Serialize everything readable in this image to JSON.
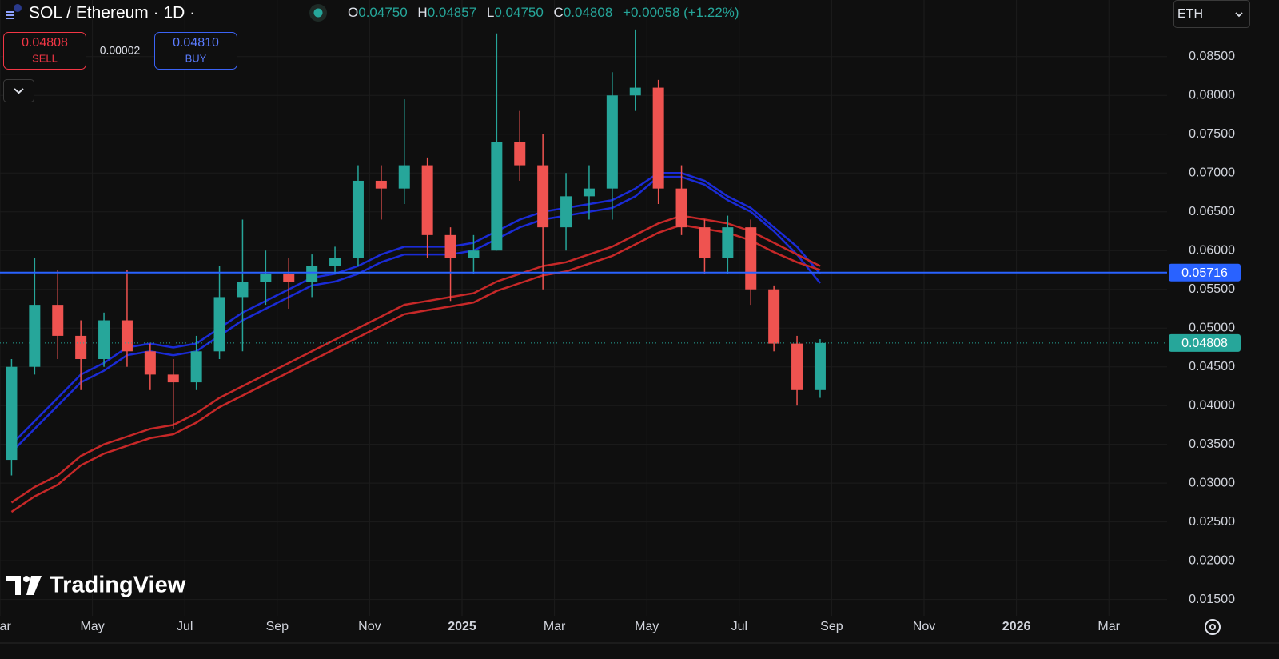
{
  "header": {
    "symbol": "SOL / Ethereum · 1D ·",
    "ohlc": [
      {
        "key": "O",
        "value": "0.04750"
      },
      {
        "key": "H",
        "value": "0.04857"
      },
      {
        "key": "L",
        "value": "0.04750"
      },
      {
        "key": "C",
        "value": "0.04808"
      }
    ],
    "change": "+0.00058 (+1.22%)",
    "currency": "ETH"
  },
  "trade_panel": {
    "sell_price": "0.04808",
    "sell_label": "SELL",
    "spread": "0.00002",
    "buy_price": "0.04810",
    "buy_label": "BUY"
  },
  "watermark": "TradingView",
  "chart_data": {
    "type": "candlestick",
    "categories": [
      "Mar",
      null,
      null,
      null,
      "May",
      null,
      null,
      null,
      "Jul",
      null,
      null,
      null,
      "Sep",
      null,
      null,
      null,
      "Nov",
      null,
      null,
      null,
      "2025",
      null,
      null,
      null,
      "Mar",
      null,
      null,
      null,
      "May",
      null,
      null,
      null,
      "Jul",
      null,
      null,
      null,
      "Sep",
      null,
      null,
      null,
      "Nov",
      null,
      null,
      null,
      "2026",
      null,
      null,
      null,
      "Mar",
      null
    ],
    "open": [
      0.033,
      0.045,
      0.053,
      0.049,
      0.046,
      0.051,
      0.047,
      0.044,
      0.043,
      0.047,
      0.054,
      0.056,
      0.057,
      0.056,
      0.058,
      0.059,
      0.069,
      0.068,
      0.071,
      0.062,
      0.059,
      0.06,
      0.074,
      0.071,
      0.063,
      0.067,
      0.068,
      0.08,
      0.081,
      0.068,
      0.063,
      0.059,
      0.063,
      0.055,
      0.048,
      0.042,
      null,
      null,
      null,
      null,
      null,
      null,
      null,
      null,
      null,
      null,
      null,
      null,
      null,
      null
    ],
    "high": [
      0.046,
      0.059,
      0.0575,
      0.051,
      0.052,
      0.0575,
      0.048,
      0.046,
      0.049,
      0.058,
      0.064,
      0.06,
      0.059,
      0.0595,
      0.0605,
      0.071,
      0.071,
      0.0795,
      0.072,
      0.063,
      0.062,
      0.088,
      0.078,
      0.075,
      0.07,
      0.071,
      0.083,
      0.0885,
      0.082,
      0.071,
      0.064,
      0.0645,
      0.064,
      0.0555,
      0.049,
      0.04857,
      null,
      null,
      null,
      null,
      null,
      null,
      null,
      null,
      null,
      null,
      null,
      null,
      null,
      null
    ],
    "low": [
      0.031,
      0.044,
      0.046,
      0.042,
      0.045,
      0.045,
      0.042,
      0.037,
      0.042,
      0.046,
      0.047,
      0.053,
      0.0525,
      0.054,
      0.057,
      0.058,
      0.064,
      0.066,
      0.059,
      0.0535,
      0.057,
      0.06,
      0.069,
      0.055,
      0.06,
      0.064,
      0.064,
      0.078,
      0.066,
      0.062,
      0.057,
      0.057,
      0.053,
      0.047,
      0.04,
      0.041,
      null,
      null,
      null,
      null,
      null,
      null,
      null,
      null,
      null,
      null,
      null,
      null,
      null,
      null
    ],
    "close": [
      0.045,
      0.053,
      0.049,
      0.046,
      0.051,
      0.047,
      0.044,
      0.043,
      0.047,
      0.054,
      0.056,
      0.057,
      0.056,
      0.058,
      0.059,
      0.069,
      0.068,
      0.071,
      0.062,
      0.059,
      0.06,
      0.074,
      0.071,
      0.063,
      0.067,
      0.068,
      0.08,
      0.081,
      0.068,
      0.063,
      0.059,
      0.063,
      0.055,
      0.048,
      0.042,
      0.04808,
      null,
      null,
      null,
      null,
      null,
      null,
      null,
      null,
      null,
      null,
      null,
      null,
      null,
      null
    ],
    "up_color": "#26a69a",
    "down_color": "#ef5350",
    "series": [
      {
        "color": "#1a2bd6",
        "values": [
          0.035,
          0.038,
          0.041,
          0.044,
          0.0455,
          0.0475,
          0.048,
          0.0475,
          0.048,
          0.05,
          0.052,
          0.0535,
          0.055,
          0.0565,
          0.057,
          0.058,
          0.0595,
          0.0605,
          0.0605,
          0.0605,
          0.061,
          0.0625,
          0.064,
          0.065,
          0.0655,
          0.066,
          0.0665,
          0.068,
          0.07,
          0.07,
          0.069,
          0.067,
          0.0655,
          0.063,
          0.0605,
          0.057,
          null,
          null,
          null,
          null,
          null,
          null,
          null,
          null,
          null,
          null,
          null,
          null,
          null,
          null
        ]
      },
      {
        "color": "#1a2bd6",
        "values": [
          0.034,
          0.037,
          0.04,
          0.043,
          0.0445,
          0.0465,
          0.047,
          0.0465,
          0.047,
          0.049,
          0.051,
          0.0525,
          0.054,
          0.0555,
          0.056,
          0.057,
          0.0585,
          0.0595,
          0.0595,
          0.0595,
          0.06,
          0.0615,
          0.063,
          0.064,
          0.0645,
          0.065,
          0.0655,
          0.067,
          0.0695,
          0.0695,
          0.0685,
          0.0665,
          0.065,
          0.0625,
          0.0595,
          0.0558,
          null,
          null,
          null,
          null,
          null,
          null,
          null,
          null,
          null,
          null,
          null,
          null,
          null,
          null
        ]
      },
      {
        "color": "#c62828",
        "values": [
          0.0275,
          0.0295,
          0.031,
          0.0335,
          0.035,
          0.036,
          0.037,
          0.0375,
          0.039,
          0.041,
          0.0425,
          0.044,
          0.0455,
          0.047,
          0.0485,
          0.05,
          0.0515,
          0.053,
          0.0535,
          0.054,
          0.0545,
          0.056,
          0.057,
          0.058,
          0.0585,
          0.0595,
          0.0605,
          0.062,
          0.0635,
          0.0645,
          0.064,
          0.0635,
          0.0625,
          0.061,
          0.0595,
          0.058,
          null,
          null,
          null,
          null,
          null,
          null,
          null,
          null,
          null,
          null,
          null,
          null,
          null,
          null
        ]
      },
      {
        "color": "#c62828",
        "values": [
          0.0263,
          0.0283,
          0.0298,
          0.0323,
          0.0338,
          0.0348,
          0.0358,
          0.0363,
          0.0378,
          0.0398,
          0.0413,
          0.0428,
          0.0443,
          0.0458,
          0.0473,
          0.0488,
          0.0503,
          0.0518,
          0.0523,
          0.0528,
          0.0533,
          0.0548,
          0.0558,
          0.0568,
          0.0573,
          0.0583,
          0.0593,
          0.0608,
          0.0623,
          0.0633,
          0.0628,
          0.0623,
          0.0613,
          0.0598,
          0.0585,
          0.0575,
          null,
          null,
          null,
          null,
          null,
          null,
          null,
          null,
          null,
          null,
          null,
          null,
          null,
          null
        ]
      }
    ],
    "hlines": [
      {
        "value": 0.05716,
        "color": "#2962ff"
      }
    ],
    "last_price": {
      "value": 0.04808,
      "color": "#26a69a"
    },
    "ylim": [
      0.0129,
      0.0923
    ],
    "yticks": [
      {
        "value": 0.015,
        "label": "0.01500"
      },
      {
        "value": 0.02,
        "label": "0.02000"
      },
      {
        "value": 0.025,
        "label": "0.02500"
      },
      {
        "value": 0.03,
        "label": "0.03000"
      },
      {
        "value": 0.035,
        "label": "0.03500"
      },
      {
        "value": 0.04,
        "label": "0.04000"
      },
      {
        "value": 0.045,
        "label": "0.04500"
      },
      {
        "value": 0.05,
        "label": "0.05000"
      },
      {
        "value": 0.055,
        "label": "0.05500"
      },
      {
        "value": 0.06,
        "label": "0.06000"
      },
      {
        "value": 0.065,
        "label": "0.06500"
      },
      {
        "value": 0.07,
        "label": "0.07000"
      },
      {
        "value": 0.075,
        "label": "0.07500"
      },
      {
        "value": 0.08,
        "label": "0.08000"
      },
      {
        "value": 0.085,
        "label": "0.08500"
      }
    ],
    "grid": true
  }
}
